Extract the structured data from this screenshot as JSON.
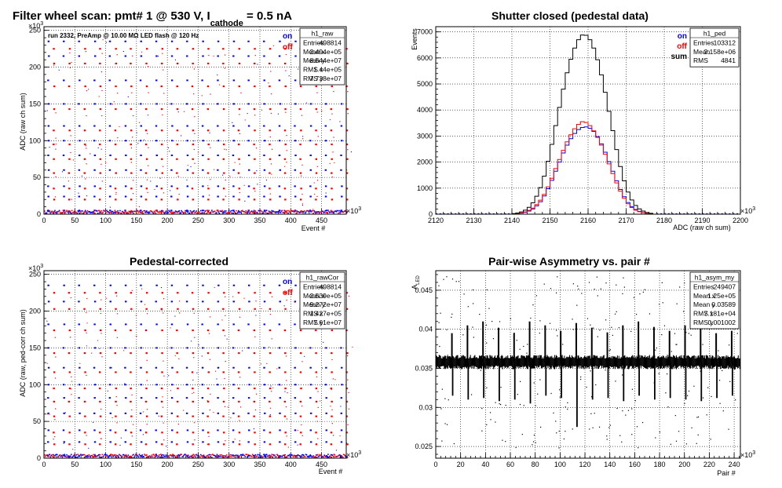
{
  "chart_data": [
    {
      "type": "scatter",
      "title_parts": [
        "Filter wheel scan: pmt#   1 @   530 V, I",
        "cathode",
        " = 0.5 nA"
      ],
      "annotation": "run 2332, PreAmp @ 10.00 MΩ LED flash @  120 Hz",
      "xlabel": "Event #",
      "ylabel": "ADC (raw ch sum)",
      "x_exponent_label": "×10",
      "x_exponent": "3",
      "y_exponent_label": "×10",
      "y_exponent": "3",
      "xlim": [
        0,
        490
      ],
      "ylim": [
        0,
        255
      ],
      "x_ticks": [
        0,
        50,
        100,
        150,
        200,
        250,
        300,
        350,
        400,
        450
      ],
      "y_ticks": [
        0,
        50,
        100,
        150,
        200,
        250
      ],
      "grid": true,
      "legend": [
        {
          "label": "on",
          "color": "#0000ff"
        },
        {
          "label": "off",
          "color": "#ff0000"
        }
      ],
      "stats": {
        "name": "h1_raw",
        "rows": [
          [
            "Entries",
            "498814"
          ],
          [
            "Mean x",
            "2.494e+05"
          ],
          [
            "Mean y",
            "8.544e+07"
          ],
          [
            "RMS x",
            "1.44e+05"
          ],
          [
            "RMS y",
            "7.738e+07"
          ]
        ]
      },
      "levels": [
        {
          "on": 235,
          "off": 225
        },
        {
          "on": 215,
          "off": 205
        },
        {
          "on": 182,
          "off": 174
        },
        {
          "on": 150,
          "off": 143
        },
        {
          "on": 120,
          "off": 114
        },
        {
          "on": 100,
          "off": 95
        },
        {
          "on": 80,
          "off": 75
        },
        {
          "on": 60,
          "off": 56
        },
        {
          "on": 38,
          "off": 35
        },
        {
          "on": 24,
          "off": 20
        },
        {
          "on": 5,
          "off": 3
        }
      ],
      "pulse_period": 25
    },
    {
      "type": "histogram",
      "title": "Shutter closed (pedestal data)",
      "xlabel": "ADC (raw ch sum)",
      "ylabel": "Events",
      "x_exponent_label": "×10",
      "x_exponent": "3",
      "xlim": [
        2120,
        2200
      ],
      "ylim": [
        0,
        7200
      ],
      "x_ticks": [
        2120,
        2130,
        2140,
        2150,
        2160,
        2170,
        2180,
        2190,
        2200
      ],
      "y_ticks": [
        0,
        1000,
        2000,
        3000,
        4000,
        5000,
        6000,
        7000
      ],
      "grid": true,
      "legend": [
        {
          "label": "on",
          "color": "#0000ff"
        },
        {
          "label": "off",
          "color": "#ff0000"
        },
        {
          "label": "sum",
          "color": "#000000"
        }
      ],
      "stats": {
        "name": "h1_ped",
        "rows": [
          [
            "Entries",
            "103312"
          ],
          [
            "Mean",
            "2.158e+06"
          ],
          [
            "RMS",
            "4841"
          ]
        ]
      },
      "bin_width": 1,
      "bin_start": 2140,
      "series": [
        {
          "name": "on",
          "color": "#0000ff",
          "values": [
            10,
            20,
            40,
            70,
            120,
            200,
            320,
            480,
            700,
            980,
            1300,
            1650,
            2000,
            2350,
            2650,
            2900,
            3100,
            3250,
            3330,
            3350,
            3300,
            3180,
            2980,
            2700,
            2380,
            2020,
            1650,
            1280,
            950,
            670,
            450,
            290,
            180,
            110,
            65,
            35,
            18
          ]
        },
        {
          "name": "off",
          "color": "#ff0000",
          "values": [
            12,
            25,
            48,
            85,
            145,
            235,
            370,
            540,
            760,
            1050,
            1380,
            1750,
            2100,
            2450,
            2780,
            3050,
            3280,
            3450,
            3550,
            3520,
            3400,
            3200,
            2950,
            2650,
            2300,
            1930,
            1560,
            1200,
            880,
            610,
            400,
            255,
            155,
            95,
            55,
            30,
            15
          ]
        },
        {
          "name": "sum",
          "color": "#000000",
          "values": [
            22,
            45,
            88,
            155,
            265,
            435,
            690,
            1020,
            1460,
            2030,
            2680,
            3400,
            4100,
            4800,
            5430,
            5950,
            6380,
            6700,
            6880,
            6870,
            6700,
            6380,
            5930,
            5350,
            4680,
            3950,
            3210,
            2480,
            1830,
            1280,
            850,
            545,
            335,
            205,
            120,
            65,
            33
          ]
        }
      ]
    },
    {
      "type": "scatter",
      "title": "Pedestal-corrected",
      "xlabel": "Event #",
      "ylabel": "ADC (raw, ped-corr ch sum)",
      "x_exponent_label": "×10",
      "x_exponent": "3",
      "y_exponent_label": "×10",
      "y_exponent": "3",
      "xlim": [
        0,
        490
      ],
      "ylim": [
        0,
        255
      ],
      "x_ticks": [
        0,
        50,
        100,
        150,
        200,
        250,
        300,
        350,
        400,
        450
      ],
      "y_ticks": [
        0,
        50,
        100,
        150,
        200,
        250
      ],
      "grid": true,
      "legend": [
        {
          "label": "on",
          "color": "#0000ff"
        },
        {
          "label": "off",
          "color": "#ff0000"
        }
      ],
      "stats": {
        "name": "h1_rawCor",
        "rows": [
          [
            "Entries",
            "498814"
          ],
          [
            "Mean x",
            "2.539e+05"
          ],
          [
            "Mean y",
            "9.272e+07"
          ],
          [
            "RMS x",
            "1.427e+05"
          ],
          [
            "RMS y",
            "7.61e+07"
          ]
        ]
      },
      "levels": [
        {
          "on": 235,
          "off": 225
        },
        {
          "on": 213,
          "off": 203
        },
        {
          "on": 182,
          "off": 174
        },
        {
          "on": 150,
          "off": 143
        },
        {
          "on": 123,
          "off": 117
        },
        {
          "on": 100,
          "off": 95
        },
        {
          "on": 82,
          "off": 77
        },
        {
          "on": 61,
          "off": 57
        },
        {
          "on": 38,
          "off": 35
        },
        {
          "on": 22,
          "off": 19
        },
        {
          "on": 3,
          "off": 1
        }
      ],
      "pulse_period": 25
    },
    {
      "type": "scatter",
      "title": "Pair-wise Asymmetry vs. pair #",
      "xlabel": "Pair #",
      "ylabel": "A",
      "ylabel_sub": "LED",
      "x_exponent_label": "×10",
      "x_exponent": "3",
      "xlim": [
        0,
        245
      ],
      "ylim": [
        0.0235,
        0.0475
      ],
      "x_ticks": [
        0,
        20,
        40,
        60,
        80,
        100,
        120,
        140,
        160,
        180,
        200,
        220,
        240
      ],
      "y_ticks": [
        0.025,
        0.03,
        0.035,
        0.04,
        0.045
      ],
      "y_tick_labels": [
        "0.025",
        "0.03",
        "0.035",
        "0.04",
        "0.045"
      ],
      "grid": true,
      "stats": {
        "name": "h1_asym_my",
        "rows": [
          [
            "Entries",
            "249407"
          ],
          [
            "Mean x",
            "1.25e+05"
          ],
          [
            "Mean y",
            "0.03589"
          ],
          [
            "RMS x",
            "7.181e+04"
          ],
          [
            "RMS y",
            "0.001002"
          ]
        ]
      },
      "band_center": 0.0358,
      "band_halfwidth": 0.0008,
      "spike_period": 12.5,
      "spike_up": [
        0.0395,
        0.0405,
        0.041,
        0.0402,
        0.0395,
        0.041,
        0.0405,
        0.0398,
        0.0408,
        0.0402,
        0.0396,
        0.0405,
        0.041,
        0.0403,
        0.0398,
        0.0405,
        0.0402,
        0.0395,
        0.0398
      ],
      "spike_down": [
        0.0315,
        0.031,
        0.0312,
        0.0308,
        0.031,
        0.0305,
        0.0315,
        0.0312,
        0.0275,
        0.031,
        0.0312,
        0.0308,
        0.0315,
        0.031,
        0.0312,
        0.031,
        0.0308,
        0.0312,
        0.0315
      ]
    }
  ]
}
